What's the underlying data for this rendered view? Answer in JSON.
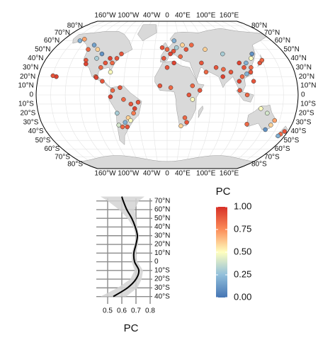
{
  "map": {
    "lon_labels": [
      {
        "value": -160,
        "label": "160°W"
      },
      {
        "value": -100,
        "label": "100°W"
      },
      {
        "value": -40,
        "label": "40°W"
      },
      0,
      {
        "value": 40,
        "label": "40°E"
      },
      {
        "value": 100,
        "label": "100°E"
      },
      {
        "value": 160,
        "label": "160°E"
      }
    ],
    "lat_labels": [
      {
        "value": 80,
        "label": "80°N"
      },
      {
        "value": 70,
        "label": "70°N"
      },
      {
        "value": 60,
        "label": "60°N"
      },
      {
        "value": 50,
        "label": "50°N"
      },
      {
        "value": 40,
        "label": "40°N"
      },
      {
        "value": 30,
        "label": "30°N"
      },
      {
        "value": 20,
        "label": "20°N"
      },
      {
        "value": 10,
        "label": "10°N"
      },
      0,
      {
        "value": -10,
        "label": "10°S"
      },
      {
        "value": -20,
        "label": "20°S"
      },
      {
        "value": -30,
        "label": "30°S"
      },
      {
        "value": -40,
        "label": "40°S"
      },
      {
        "value": -50,
        "label": "50°S"
      },
      {
        "value": -60,
        "label": "60°S"
      },
      {
        "value": -70,
        "label": "70°S"
      },
      {
        "value": -80,
        "label": "80°S"
      }
    ],
    "points": {
      "lon": [
        -120,
        -118,
        -105,
        -100,
        -95,
        -90,
        -85,
        -80,
        -75,
        -110,
        -125,
        -100,
        -99,
        -90,
        -145,
        -150,
        -70,
        -120,
        -80,
        -155,
        -160,
        -75,
        -65,
        -78,
        -60,
        -50,
        -45,
        -47,
        -55,
        -60,
        -65,
        -70,
        -58,
        -70,
        -40,
        -52,
        -5,
        0,
        10,
        15,
        25,
        30,
        5,
        20,
        12,
        -8,
        40,
        -10,
        5,
        30,
        35,
        25,
        28,
        20,
        10,
        35,
        45,
        0,
        50,
        55,
        70,
        78,
        80,
        90,
        100,
        105,
        110,
        115,
        120,
        118,
        125,
        135,
        140,
        100,
        110,
        120,
        60,
        85,
        130,
        105,
        112,
        115,
        150,
        145,
        153,
        130,
        175,
        172,
        170,
        140
      ],
      "lat": [
        38,
        34,
        40,
        45,
        30,
        35,
        40,
        35,
        40,
        50,
        50,
        20,
        19,
        15,
        62,
        60,
        45,
        55,
        25,
        20,
        21,
        5,
        8,
        -2,
        -5,
        -10,
        -15,
        -20,
        -25,
        -30,
        -35,
        -33,
        -35,
        -20,
        -8,
        -28,
        40,
        50,
        48,
        52,
        55,
        50,
        45,
        42,
        60,
        52,
        55,
        10,
        8,
        0,
        -5,
        -25,
        -30,
        -34,
        35,
        10,
        5,
        30,
        35,
        25,
        30,
        20,
        28,
        25,
        15,
        20,
        30,
        35,
        30,
        25,
        40,
        35,
        38,
        5,
        0,
        15,
        50,
        45,
        45,
        35,
        23,
        -32,
        -33,
        -38,
        -28,
        -15,
        -40,
        -43,
        -45,
        -20
      ],
      "pc": [
        0.9,
        0.95,
        0.3,
        0.1,
        0.85,
        0.9,
        0.95,
        0.85,
        0.9,
        0.6,
        0.85,
        0.8,
        0.95,
        0.9,
        0.7,
        0.2,
        0.9,
        0.15,
        0.5,
        0.95,
        0.9,
        0.85,
        0.9,
        0.95,
        0.85,
        0.9,
        0.95,
        0.8,
        0.6,
        0.2,
        0.85,
        0.4,
        0.9,
        0.3,
        0.9,
        0.5,
        0.9,
        0.85,
        0.9,
        0.3,
        0.6,
        0.9,
        0.95,
        0.85,
        0.2,
        0.9,
        0.85,
        0.9,
        0.85,
        0.9,
        0.5,
        0.85,
        0.9,
        0.6,
        0.95,
        0.85,
        0.9,
        0.9,
        0.9,
        0.85,
        0.9,
        0.95,
        0.85,
        0.9,
        0.95,
        0.85,
        0.9,
        0.2,
        0.85,
        0.9,
        0.5,
        0.9,
        0.85,
        0.9,
        0.85,
        0.9,
        0.6,
        0.3,
        0.1,
        0.95,
        0.2,
        0.85,
        0.6,
        0.1,
        0.7,
        0.5,
        0.9,
        0.85,
        0.2,
        0.4
      ]
    }
  },
  "legend": {
    "title": "PC",
    "lim": [
      0,
      1
    ],
    "colors": [
      "#4575b4",
      "#91bfdb",
      "#ffffbf",
      "#fc8d59",
      "#d73027"
    ],
    "ticks": [
      {
        "value": 1,
        "label": "1.00"
      },
      0.75,
      {
        "value": 0.5,
        "label": "0.50"
      },
      0.25,
      {
        "value": 0,
        "label": "0.00"
      }
    ]
  },
  "chart_data": {
    "type": "line",
    "x_label": "PC",
    "color": "#000000",
    "band_color": "#d3d3d3",
    "grid": true,
    "y": [
      75,
      70,
      60,
      50,
      40,
      30,
      20,
      10,
      0,
      -10,
      -20,
      -30,
      -40
    ],
    "values": [
      0.6,
      0.61,
      0.635,
      0.67,
      0.695,
      0.71,
      0.7,
      0.685,
      0.69,
      0.72,
      0.7,
      0.64,
      0.54
    ],
    "ci_lower": [
      0.45,
      0.5,
      0.58,
      0.64,
      0.68,
      0.7,
      0.69,
      0.67,
      0.67,
      0.69,
      0.66,
      0.57,
      0.45
    ],
    "ci_upper": [
      0.76,
      0.72,
      0.69,
      0.7,
      0.71,
      0.72,
      0.715,
      0.7,
      0.71,
      0.75,
      0.74,
      0.71,
      0.63
    ],
    "xlim": [
      0.42,
      0.8
    ],
    "xticks": [
      0.5,
      0.6,
      0.7,
      0.8
    ],
    "ylim": [
      -46,
      73
    ],
    "yticks": [
      {
        "value": 70,
        "label": "70°N"
      },
      {
        "value": 60,
        "label": "60°N"
      },
      {
        "value": 50,
        "label": "50°N"
      },
      {
        "value": 40,
        "label": "40°N"
      },
      {
        "value": 30,
        "label": "30°N"
      },
      {
        "value": 20,
        "label": "20°N"
      },
      {
        "value": 10,
        "label": "10°N"
      },
      0,
      {
        "value": -10,
        "label": "10°S"
      },
      {
        "value": -20,
        "label": "20°S"
      },
      {
        "value": -30,
        "label": "30°S"
      },
      {
        "value": -40,
        "label": "40°S"
      }
    ]
  }
}
